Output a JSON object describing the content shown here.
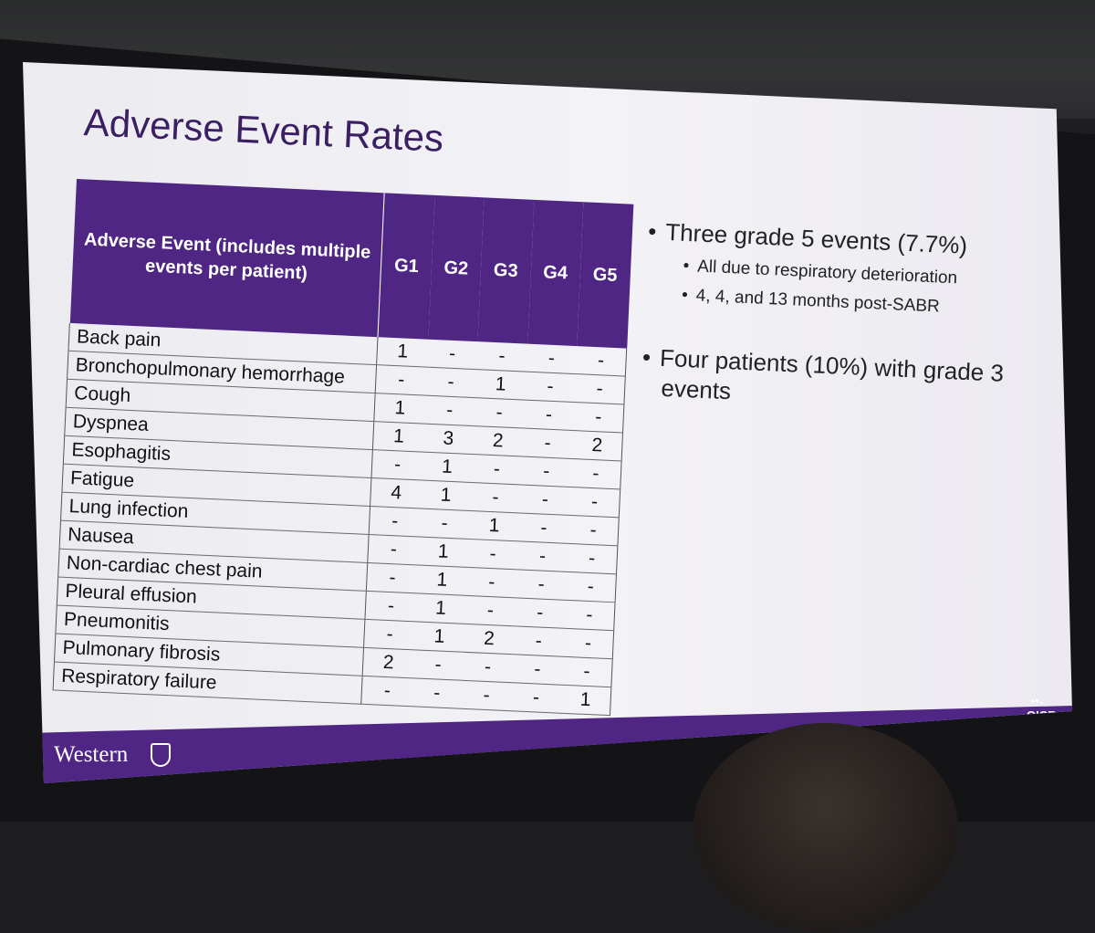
{
  "slide": {
    "title": "Adverse Event Rates",
    "table": {
      "headers": [
        "Adverse Event (includes multiple events per patient)",
        "G1",
        "G2",
        "G3",
        "G4",
        "G5"
      ],
      "rows": [
        {
          "event": "Back pain",
          "grades": [
            "1",
            "-",
            "-",
            "-",
            "-"
          ]
        },
        {
          "event": "Bronchopulmonary hemorrhage",
          "grades": [
            "-",
            "-",
            "1",
            "-",
            "-"
          ]
        },
        {
          "event": "Cough",
          "grades": [
            "1",
            "-",
            "-",
            "-",
            "-"
          ]
        },
        {
          "event": "Dyspnea",
          "grades": [
            "1",
            "3",
            "2",
            "-",
            "2"
          ]
        },
        {
          "event": "Esophagitis",
          "grades": [
            "-",
            "1",
            "-",
            "-",
            "-"
          ]
        },
        {
          "event": "Fatigue",
          "grades": [
            "4",
            "1",
            "-",
            "-",
            "-"
          ]
        },
        {
          "event": "Lung infection",
          "grades": [
            "-",
            "-",
            "1",
            "-",
            "-"
          ]
        },
        {
          "event": "Nausea",
          "grades": [
            "-",
            "1",
            "-",
            "-",
            "-"
          ]
        },
        {
          "event": "Non-cardiac chest pain",
          "grades": [
            "-",
            "1",
            "-",
            "-",
            "-"
          ]
        },
        {
          "event": "Pleural effusion",
          "grades": [
            "-",
            "1",
            "-",
            "-",
            "-"
          ]
        },
        {
          "event": "Pneumonitis",
          "grades": [
            "-",
            "1",
            "2",
            "-",
            "-"
          ]
        },
        {
          "event": "Pulmonary fibrosis",
          "grades": [
            "2",
            "-",
            "-",
            "-",
            "-"
          ]
        },
        {
          "event": "Respiratory failure",
          "grades": [
            "-",
            "-",
            "-",
            "-",
            "1"
          ]
        }
      ]
    },
    "bullets": [
      {
        "text": "Three grade 5 events (7.7%)",
        "sub": [
          "All due to respiratory deterioration",
          "4, 4, and 13 months post-SABR"
        ]
      },
      {
        "text": "Four patients (10%) with grade 3 events",
        "sub": []
      }
    ],
    "footer": {
      "logo_text": "Western",
      "partner_logo_text": "OICR"
    },
    "colors": {
      "accent": "#4f2683",
      "title": "#3b1f63",
      "background": "#f1f0f4"
    }
  }
}
